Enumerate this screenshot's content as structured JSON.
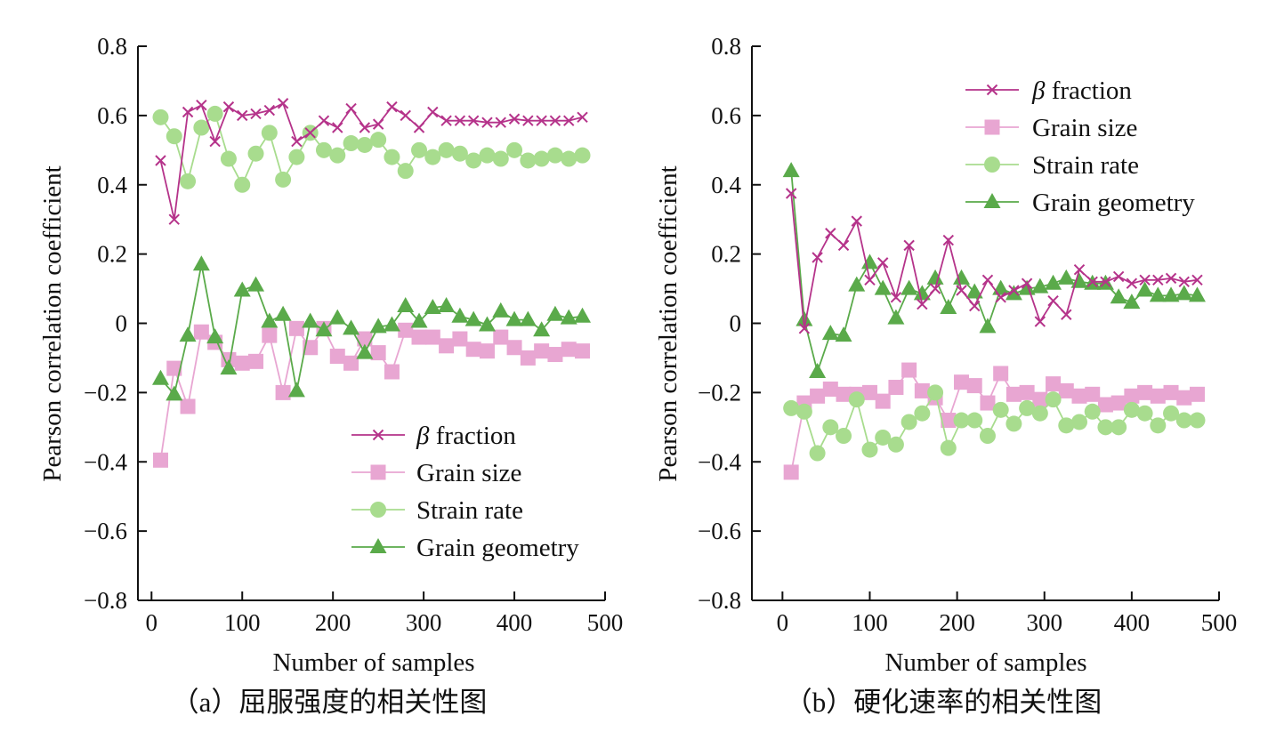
{
  "chart_data": [
    {
      "type": "line",
      "caption": "（a）屈服强度的相关性图",
      "xlabel": "Number of samples",
      "ylabel": "Pearson correlation coefficient",
      "xlim": [
        -15,
        500
      ],
      "ylim": [
        -0.8,
        0.8
      ],
      "xticks": [
        "0",
        "100",
        "200",
        "300",
        "400",
        "500"
      ],
      "yticks": [
        "0.8",
        "0.6",
        "0.4",
        "0.2",
        "0",
        "−0.2",
        "−0.4",
        "−0.6",
        "−0.8"
      ],
      "legend_position": "bottom-right",
      "grid": false,
      "x": [
        10,
        25,
        40,
        55,
        70,
        85,
        100,
        115,
        130,
        145,
        160,
        175,
        190,
        205,
        220,
        235,
        250,
        265,
        280,
        295,
        310,
        325,
        340,
        355,
        370,
        385,
        400,
        415,
        430,
        445,
        460,
        475
      ],
      "series": [
        {
          "name": "β fraction",
          "marker": "x",
          "color": "#b5338a",
          "values": [
            0.47,
            0.3,
            0.61,
            0.63,
            0.525,
            0.625,
            0.6,
            0.605,
            0.615,
            0.635,
            0.525,
            0.55,
            0.585,
            0.565,
            0.62,
            0.565,
            0.575,
            0.625,
            0.6,
            0.565,
            0.61,
            0.585,
            0.585,
            0.585,
            0.58,
            0.58,
            0.59,
            0.585,
            0.585,
            0.585,
            0.585,
            0.595
          ]
        },
        {
          "name": "Grain size",
          "marker": "square",
          "color": "#e8a6d2",
          "values": [
            -0.395,
            -0.13,
            -0.24,
            -0.025,
            -0.055,
            -0.105,
            -0.115,
            -0.11,
            -0.035,
            -0.2,
            -0.015,
            -0.07,
            -0.015,
            -0.095,
            -0.115,
            -0.045,
            -0.085,
            -0.14,
            -0.02,
            -0.04,
            -0.04,
            -0.065,
            -0.045,
            -0.075,
            -0.08,
            -0.04,
            -0.07,
            -0.1,
            -0.08,
            -0.09,
            -0.075,
            -0.08
          ]
        },
        {
          "name": "Strain rate",
          "marker": "circle",
          "color": "#a8dc8e",
          "values": [
            0.595,
            0.54,
            0.41,
            0.565,
            0.605,
            0.475,
            0.4,
            0.49,
            0.55,
            0.415,
            0.48,
            0.55,
            0.5,
            0.485,
            0.52,
            0.515,
            0.53,
            0.48,
            0.44,
            0.5,
            0.48,
            0.5,
            0.49,
            0.47,
            0.485,
            0.475,
            0.5,
            0.47,
            0.475,
            0.485,
            0.475,
            0.485
          ]
        },
        {
          "name": "Grain geometry",
          "marker": "triangle",
          "color": "#5aaa4a",
          "values": [
            -0.16,
            -0.205,
            -0.035,
            0.17,
            -0.04,
            -0.13,
            0.095,
            0.11,
            0.005,
            0.025,
            -0.195,
            0.005,
            -0.02,
            0.015,
            -0.015,
            -0.085,
            -0.01,
            -0.005,
            0.05,
            0.005,
            0.045,
            0.05,
            0.02,
            0.01,
            -0.005,
            0.035,
            0.01,
            0.01,
            -0.02,
            0.025,
            0.015,
            0.02
          ]
        }
      ]
    },
    {
      "type": "line",
      "caption": "（b）硬化速率的相关性图",
      "xlabel": "Number of samples",
      "ylabel": "Pearson correlation coefficient",
      "xlim": [
        -35,
        500
      ],
      "ylim": [
        -0.8,
        0.8
      ],
      "xticks": [
        "0",
        "100",
        "200",
        "300",
        "400",
        "500"
      ],
      "yticks": [
        "0.8",
        "0.6",
        "0.4",
        "0.2",
        "0",
        "−0.2",
        "−0.4",
        "−0.6",
        "−0.8"
      ],
      "legend_position": "top-right",
      "grid": false,
      "x": [
        10,
        25,
        40,
        55,
        70,
        85,
        100,
        115,
        130,
        145,
        160,
        175,
        190,
        205,
        220,
        235,
        250,
        265,
        280,
        295,
        310,
        325,
        340,
        355,
        370,
        385,
        400,
        415,
        430,
        445,
        460,
        475
      ],
      "series": [
        {
          "name": "β fraction",
          "marker": "x",
          "color": "#b5338a",
          "values": [
            0.375,
            -0.015,
            0.19,
            0.26,
            0.225,
            0.295,
            0.125,
            0.175,
            0.075,
            0.225,
            0.055,
            0.1,
            0.24,
            0.095,
            0.05,
            0.125,
            0.075,
            0.095,
            0.115,
            0.005,
            0.065,
            0.025,
            0.155,
            0.12,
            0.12,
            0.135,
            0.115,
            0.125,
            0.125,
            0.13,
            0.12,
            0.125
          ]
        },
        {
          "name": "Grain size",
          "marker": "square",
          "color": "#e8a6d2",
          "values": [
            -0.43,
            -0.23,
            -0.21,
            -0.19,
            -0.205,
            -0.205,
            -0.2,
            -0.225,
            -0.185,
            -0.135,
            -0.195,
            -0.215,
            -0.28,
            -0.17,
            -0.18,
            -0.23,
            -0.145,
            -0.205,
            -0.2,
            -0.22,
            -0.175,
            -0.195,
            -0.21,
            -0.205,
            -0.235,
            -0.23,
            -0.21,
            -0.2,
            -0.21,
            -0.2,
            -0.215,
            -0.205
          ]
        },
        {
          "name": "Strain rate",
          "marker": "circle",
          "color": "#a8dc8e",
          "values": [
            -0.245,
            -0.255,
            -0.375,
            -0.3,
            -0.325,
            -0.22,
            -0.365,
            -0.33,
            -0.35,
            -0.285,
            -0.26,
            -0.2,
            -0.36,
            -0.28,
            -0.28,
            -0.325,
            -0.25,
            -0.29,
            -0.245,
            -0.26,
            -0.22,
            -0.295,
            -0.285,
            -0.255,
            -0.3,
            -0.3,
            -0.25,
            -0.26,
            -0.295,
            -0.26,
            -0.28,
            -0.28
          ]
        },
        {
          "name": "Grain geometry",
          "marker": "triangle",
          "color": "#5aaa4a",
          "values": [
            0.44,
            0.01,
            -0.14,
            -0.03,
            -0.035,
            0.11,
            0.175,
            0.1,
            0.015,
            0.1,
            0.085,
            0.13,
            0.045,
            0.13,
            0.09,
            -0.01,
            0.1,
            0.085,
            0.1,
            0.105,
            0.115,
            0.13,
            0.12,
            0.115,
            0.115,
            0.075,
            0.06,
            0.095,
            0.08,
            0.08,
            0.085,
            0.08
          ]
        }
      ]
    }
  ]
}
